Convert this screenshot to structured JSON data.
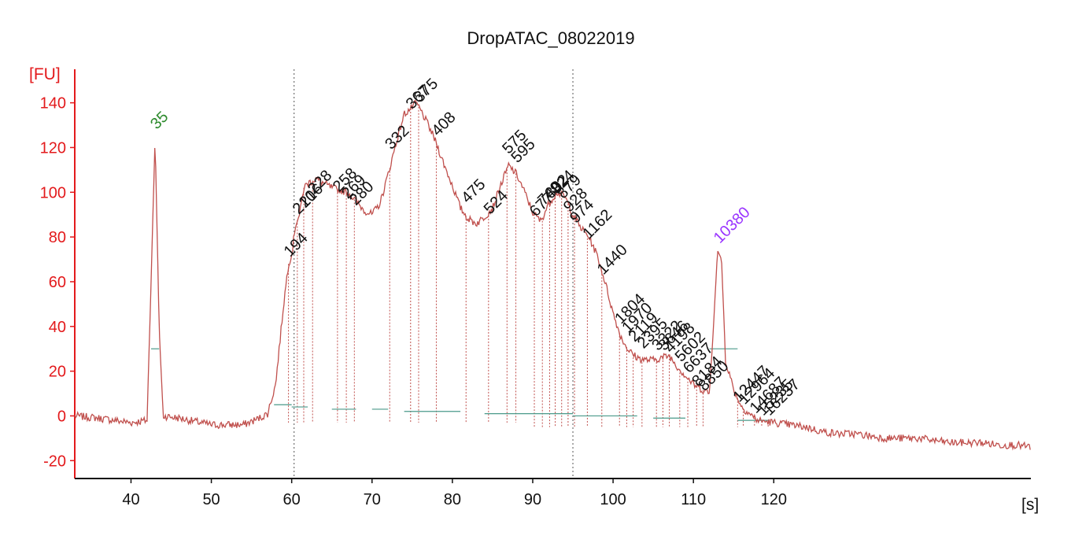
{
  "chart_data": {
    "type": "line",
    "title": "DropATAC_08022019",
    "ylabel": "[FU]",
    "xlabel": "[s]",
    "xlim": [
      33,
      152
    ],
    "ylim": [
      -28,
      155
    ],
    "yticks": [
      140,
      120,
      100,
      80,
      60,
      40,
      20,
      0,
      -20
    ],
    "ytick_labels": [
      "140",
      "120",
      "100",
      "80",
      "60",
      "40",
      "20",
      "0",
      "-20"
    ],
    "xticks": [
      40,
      50,
      60,
      70,
      80,
      90,
      100,
      110,
      120
    ],
    "xtick_labels": [
      "40",
      "50",
      "60",
      "70",
      "80",
      "90",
      "100",
      "110",
      "120"
    ],
    "region_markers_x": [
      60.3,
      95.0
    ],
    "colors": {
      "trace": "#c0504d",
      "axis": "#e31a1c",
      "marker_label": "#2e8b2e",
      "ladder_label": "#9933ff",
      "baseline": "#4a9a8a",
      "grid_line": "#555555"
    },
    "series": [
      {
        "x": [
          33,
          36,
          40,
          42,
          42.5,
          43,
          43.5,
          44,
          46,
          50,
          54,
          56,
          57,
          58,
          59,
          59.6,
          60,
          60.5,
          61,
          61.5,
          62,
          63,
          64,
          65,
          66,
          67,
          68,
          69,
          70,
          71,
          72,
          73,
          74,
          75,
          75.5,
          76,
          77,
          78,
          79,
          80,
          81,
          82,
          83,
          84,
          85,
          86,
          87,
          88,
          89,
          90,
          91,
          92,
          93,
          94,
          95,
          96,
          97,
          98,
          99,
          100,
          101,
          102,
          103,
          104,
          105,
          106,
          107,
          108,
          109,
          110,
          111,
          112,
          112.5,
          113,
          113.5,
          114,
          115,
          116,
          118,
          120,
          122,
          124,
          126,
          128,
          130,
          132,
          134,
          136,
          138,
          140,
          142,
          144,
          146,
          148,
          150,
          152
        ],
        "y": [
          0,
          -1,
          -3,
          -2,
          60,
          125,
          40,
          0,
          -1,
          -4,
          -4,
          -1,
          1,
          14,
          50,
          68,
          72,
          86,
          90,
          102,
          104,
          106,
          104,
          102,
          101,
          100,
          96,
          92,
          90,
          95,
          108,
          122,
          135,
          138,
          140,
          137,
          130,
          122,
          112,
          103,
          93,
          88,
          86,
          89,
          93,
          103,
          112,
          108,
          100,
          91,
          87,
          95,
          100,
          98,
          90,
          84,
          80,
          72,
          60,
          46,
          35,
          29,
          26,
          25,
          25,
          26,
          27,
          22,
          18,
          14,
          12,
          10,
          40,
          74,
          70,
          25,
          12,
          4,
          -2,
          -3,
          -4,
          -5,
          -7,
          -8,
          -8,
          -9,
          -10,
          -10,
          -10,
          -11,
          -12,
          -12,
          -12,
          -13,
          -13,
          -14
        ]
      }
    ],
    "peaks": [
      {
        "label": "35",
        "x": 43.0,
        "y": 125,
        "kind": "marker"
      },
      {
        "label": "194",
        "x": 59.6,
        "y": 68,
        "kind": "fragment"
      },
      {
        "label": "210",
        "x": 60.7,
        "y": 87,
        "kind": "fragment"
      },
      {
        "label": "216",
        "x": 61.5,
        "y": 90,
        "kind": "fragment"
      },
      {
        "label": "228",
        "x": 62.6,
        "y": 96,
        "kind": "fragment"
      },
      {
        "label": "258",
        "x": 65.7,
        "y": 97,
        "kind": "fragment"
      },
      {
        "label": "269",
        "x": 66.8,
        "y": 94,
        "kind": "fragment"
      },
      {
        "label": "280",
        "x": 67.8,
        "y": 91,
        "kind": "fragment"
      },
      {
        "label": "332",
        "x": 72.2,
        "y": 116,
        "kind": "fragment"
      },
      {
        "label": "367",
        "x": 74.8,
        "y": 134,
        "kind": "fragment"
      },
      {
        "label": "375",
        "x": 75.8,
        "y": 137,
        "kind": "fragment"
      },
      {
        "label": "408",
        "x": 78.0,
        "y": 122,
        "kind": "fragment"
      },
      {
        "label": "475",
        "x": 81.7,
        "y": 92,
        "kind": "fragment"
      },
      {
        "label": "524",
        "x": 84.5,
        "y": 87,
        "kind": "fragment"
      },
      {
        "label": "575",
        "x": 86.8,
        "y": 114,
        "kind": "fragment"
      },
      {
        "label": "595",
        "x": 87.9,
        "y": 110,
        "kind": "fragment"
      },
      {
        "label": "677",
        "x": 90.2,
        "y": 86,
        "kind": "fragment"
      },
      {
        "label": "749",
        "x": 91.2,
        "y": 91,
        "kind": "fragment"
      },
      {
        "label": "802",
        "x": 92.1,
        "y": 94,
        "kind": "fragment"
      },
      {
        "label": "824",
        "x": 92.8,
        "y": 96,
        "kind": "fragment"
      },
      {
        "label": "879",
        "x": 93.6,
        "y": 94,
        "kind": "fragment"
      },
      {
        "label": "928",
        "x": 94.4,
        "y": 88,
        "kind": "fragment"
      },
      {
        "label": "974",
        "x": 95.2,
        "y": 83,
        "kind": "fragment"
      },
      {
        "label": "1162",
        "x": 96.8,
        "y": 76,
        "kind": "fragment"
      },
      {
        "label": "1440",
        "x": 98.6,
        "y": 60,
        "kind": "fragment"
      },
      {
        "label": "1804",
        "x": 100.8,
        "y": 38,
        "kind": "fragment"
      },
      {
        "label": "1970",
        "x": 101.7,
        "y": 34,
        "kind": "fragment"
      },
      {
        "label": "2119",
        "x": 102.5,
        "y": 30,
        "kind": "fragment"
      },
      {
        "label": "2395",
        "x": 103.6,
        "y": 27,
        "kind": "fragment"
      },
      {
        "label": "3322",
        "x": 105.4,
        "y": 26,
        "kind": "fragment"
      },
      {
        "label": "3646",
        "x": 106.2,
        "y": 26,
        "kind": "fragment"
      },
      {
        "label": "4198",
        "x": 107.0,
        "y": 25,
        "kind": "fragment"
      },
      {
        "label": "5602",
        "x": 108.3,
        "y": 21,
        "kind": "fragment"
      },
      {
        "label": "6637",
        "x": 109.3,
        "y": 16,
        "kind": "fragment"
      },
      {
        "label": "8184",
        "x": 110.4,
        "y": 10,
        "kind": "fragment"
      },
      {
        "label": "8850",
        "x": 111.2,
        "y": 8,
        "kind": "fragment"
      },
      {
        "label": "10380",
        "x": 113.1,
        "y": 74,
        "kind": "ladder"
      },
      {
        "label": "12447",
        "x": 115.5,
        "y": 3,
        "kind": "fragment"
      },
      {
        "label": "12964",
        "x": 116.2,
        "y": 2,
        "kind": "fragment"
      },
      {
        "label": "14687",
        "x": 117.6,
        "y": -2,
        "kind": "fragment"
      },
      {
        "label": "15235",
        "x": 118.5,
        "y": -3,
        "kind": "fragment"
      },
      {
        "label": "16237",
        "x": 119.3,
        "y": -3,
        "kind": "fragment"
      }
    ]
  }
}
